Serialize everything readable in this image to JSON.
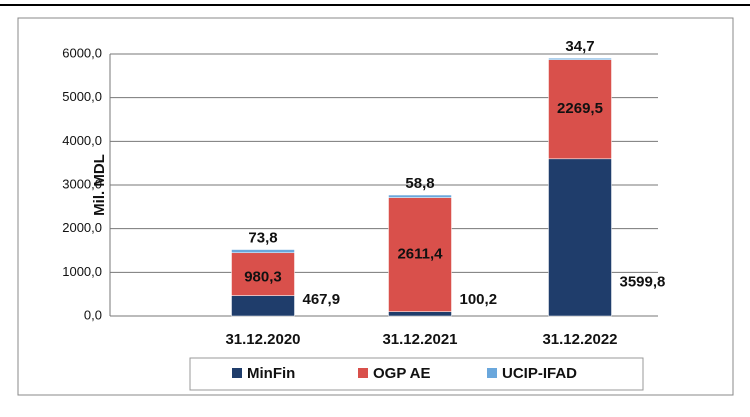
{
  "chart_data": {
    "type": "stacked_bar",
    "y_axis_label": "Mil. MDL",
    "categories": [
      "31.12.2020",
      "31.12.2021",
      "31.12.2022"
    ],
    "series": [
      {
        "name": "MinFin",
        "color": "#1f3d6b",
        "values": [
          467.9,
          100.2,
          3599.8
        ],
        "value_labels": [
          "467,9",
          "100,2",
          "3599,8"
        ]
      },
      {
        "name": "OGP AE",
        "color": "#d9504b",
        "values": [
          980.3,
          2611.4,
          2269.5
        ],
        "value_labels": [
          "980,3",
          "2611,4",
          "2269,5"
        ]
      },
      {
        "name": "UCIP-IFAD",
        "color": "#6aa7dc",
        "values": [
          73.8,
          58.8,
          34.7
        ],
        "value_labels": [
          "73,8",
          "58,8",
          "34,7"
        ]
      }
    ],
    "ylim": [
      0,
      6000
    ],
    "yticks": [
      {
        "value": 0,
        "label": "0,0"
      },
      {
        "value": 1000,
        "label": "1000,0"
      },
      {
        "value": 2000,
        "label": "2000,0"
      },
      {
        "value": 3000,
        "label": "3000,0"
      },
      {
        "value": 4000,
        "label": "4000,0"
      },
      {
        "value": 5000,
        "label": "5000,0"
      },
      {
        "value": 6000,
        "label": "6000,0"
      }
    ],
    "grid": true,
    "legend": "bottom"
  }
}
